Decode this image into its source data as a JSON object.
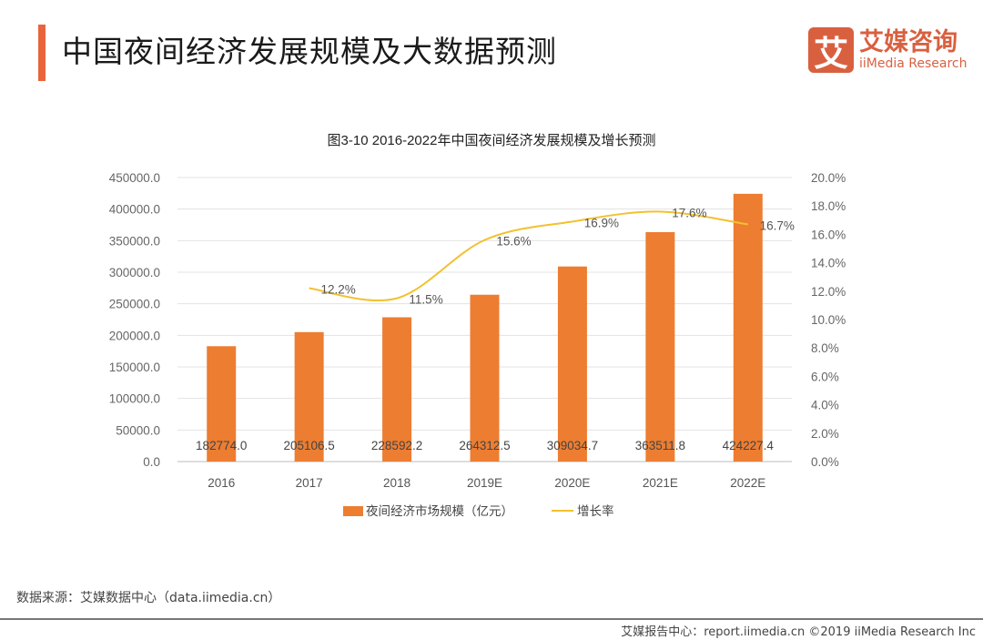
{
  "header": {
    "title": "中国夜间经济发展规模及大数据预测",
    "logo_mark": "艾",
    "logo_cn": "艾媒咨询",
    "logo_en": "iiMedia Research"
  },
  "chart_data": {
    "type": "bar+line",
    "title": "图3-10 2016-2022年中国夜间经济发展规模及增长预测",
    "categories": [
      "2016",
      "2017",
      "2018",
      "2019E",
      "2020E",
      "2021E",
      "2022E"
    ],
    "series": [
      {
        "name": "夜间经济市场规模（亿元）",
        "type": "bar",
        "axis": "left",
        "color": "#ed7d31",
        "values": [
          182774.0,
          205106.5,
          228592.2,
          264312.5,
          309034.7,
          363511.8,
          424227.4
        ],
        "labels": [
          "182774.0",
          "205106.5",
          "228592.2",
          "264312.5",
          "309034.7",
          "363511.8",
          "424227.4"
        ]
      },
      {
        "name": "增长率",
        "type": "line",
        "axis": "right",
        "color": "#f2c12e",
        "values": [
          null,
          12.2,
          11.5,
          15.6,
          16.9,
          17.6,
          16.7
        ],
        "labels": [
          "",
          "12.2%",
          "11.5%",
          "15.6%",
          "16.9%",
          "17.6%",
          "16.7%"
        ]
      }
    ],
    "y_left": {
      "range": [
        0,
        450000
      ],
      "ticks": [
        "0.0",
        "50000.0",
        "100000.0",
        "150000.0",
        "200000.0",
        "250000.0",
        "300000.0",
        "350000.0",
        "400000.0",
        "450000.0"
      ]
    },
    "y_right": {
      "range": [
        0,
        20
      ],
      "ticks": [
        "0.0%",
        "2.0%",
        "4.0%",
        "6.0%",
        "8.0%",
        "10.0%",
        "12.0%",
        "14.0%",
        "16.0%",
        "18.0%",
        "20.0%"
      ]
    },
    "grid": true,
    "legend": "bottom"
  },
  "source": "数据来源：艾媒数据中心（data.iimedia.cn）",
  "footer": "艾媒报告中心：report.iimedia.cn  ©2019  iiMedia Research Inc"
}
